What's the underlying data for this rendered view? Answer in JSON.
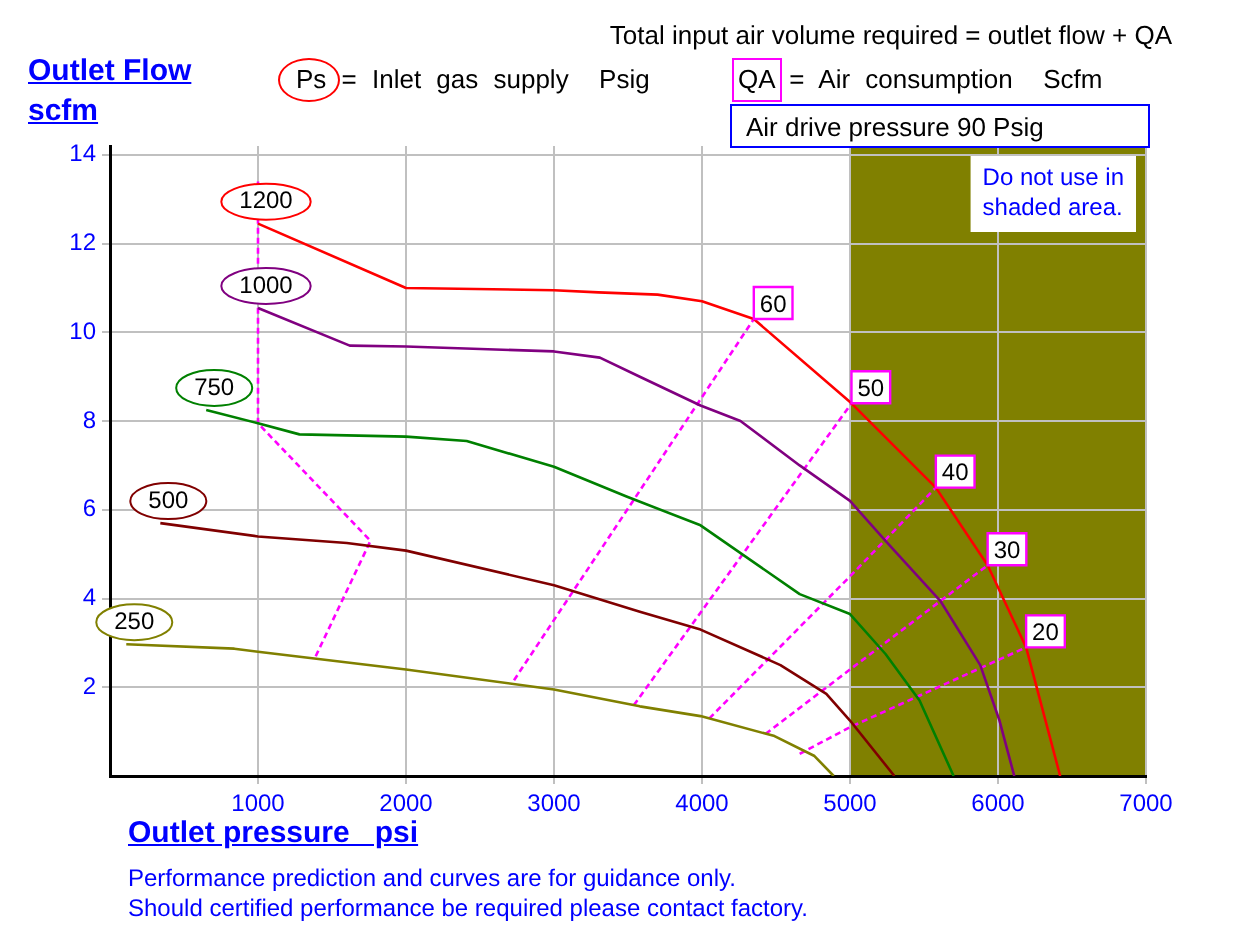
{
  "chart_data": {
    "type": "line",
    "xlabel": "Outlet pressure   psi",
    "ylabel": "Outlet Flow\nscfm",
    "xlim": [
      0,
      7000
    ],
    "xticks": [
      1000,
      2000,
      3000,
      4000,
      5000,
      6000,
      7000
    ],
    "ylim": [
      0,
      14.2
    ],
    "yticks": [
      2,
      4,
      6,
      8,
      10,
      12,
      14
    ],
    "grid": true,
    "legend": false,
    "marker": "none",
    "series": [
      {
        "name": "1200",
        "color": "#ff0000",
        "line_style": "solid",
        "x": [
          1000,
          2000,
          3000,
          3300,
          3700,
          4000,
          4350,
          5010,
          5580,
          5930,
          6190,
          6420
        ],
        "values": [
          12.45,
          11.0,
          10.95,
          10.9,
          10.85,
          10.7,
          10.3,
          8.4,
          6.5,
          4.75,
          2.9,
          0
        ]
      },
      {
        "name": "1000",
        "color": "#800080",
        "line_style": "solid",
        "x": [
          1000,
          1620,
          2000,
          3000,
          3310,
          3580,
          3990,
          4260,
          4660,
          5000,
          5240,
          5610,
          5880,
          6010,
          6110
        ],
        "values": [
          10.55,
          9.7,
          9.68,
          9.57,
          9.43,
          9.0,
          8.35,
          8.0,
          7.0,
          6.2,
          5.3,
          3.95,
          2.5,
          1.25,
          0
        ]
      },
      {
        "name": "750",
        "color": "#008000",
        "line_style": "solid",
        "x": [
          650,
          1000,
          1280,
          2000,
          2410,
          3000,
          3490,
          3990,
          4660,
          5000,
          5240,
          5470,
          5700
        ],
        "values": [
          8.25,
          7.95,
          7.7,
          7.65,
          7.55,
          6.97,
          6.3,
          5.65,
          4.1,
          3.65,
          2.75,
          1.7,
          0
        ]
      },
      {
        "name": "500",
        "color": "#800000",
        "line_style": "solid",
        "x": [
          340,
          1000,
          1600,
          2000,
          3000,
          3580,
          3990,
          4530,
          4840,
          5000,
          5300
        ],
        "values": [
          5.7,
          5.4,
          5.25,
          5.08,
          4.3,
          3.7,
          3.3,
          2.5,
          1.85,
          1.25,
          0
        ]
      },
      {
        "name": "250",
        "color": "#808000",
        "line_style": "solid",
        "x": [
          110,
          840,
          1000,
          2000,
          3000,
          3580,
          3990,
          4490,
          4760,
          4890
        ],
        "values": [
          2.97,
          2.87,
          2.8,
          2.4,
          1.95,
          1.57,
          1.35,
          0.9,
          0.45,
          0
        ]
      },
      {
        "color": "#ff00ff",
        "line_style": "dashed",
        "x": [
          1390,
          1760,
          1000,
          1000
        ],
        "values": [
          2.7,
          5.3,
          7.95,
          13.4
        ]
      },
      {
        "name": "60",
        "color": "#ff00ff",
        "line_style": "dashed",
        "x": [
          2730,
          4350
        ],
        "values": [
          2.16,
          10.3
        ]
      },
      {
        "name": "50",
        "color": "#ff00ff",
        "line_style": "dashed",
        "x": [
          3540,
          5010
        ],
        "values": [
          1.6,
          8.4
        ]
      },
      {
        "name": "40",
        "color": "#ff00ff",
        "line_style": "dashed",
        "x": [
          4050,
          5000,
          5580
        ],
        "values": [
          1.3,
          4.5,
          6.5
        ]
      },
      {
        "name": "30",
        "color": "#ff00ff",
        "line_style": "dashed",
        "x": [
          4430,
          5000,
          5930
        ],
        "values": [
          0.95,
          2.4,
          4.75
        ]
      },
      {
        "name": "20",
        "color": "#ff00ff",
        "line_style": "dashed",
        "x": [
          4660,
          5000,
          6190
        ],
        "values": [
          0.5,
          1.1,
          2.9
        ]
      }
    ],
    "bands": [
      {
        "axis": "x",
        "from": 5000,
        "to": 7000,
        "label": "Do not use in shaded area.",
        "color": "#808000"
      }
    ],
    "annotations": [
      "Total input air volume required = outlet flow + QA",
      "Ps = Inlet gas supply  Psig",
      "QA = Air consumption  Scfm",
      "Air drive pressure  90 Psig",
      "Performance prediction and curves are for guidance only.",
      "Should certified performance be required please contact factory."
    ]
  }
}
